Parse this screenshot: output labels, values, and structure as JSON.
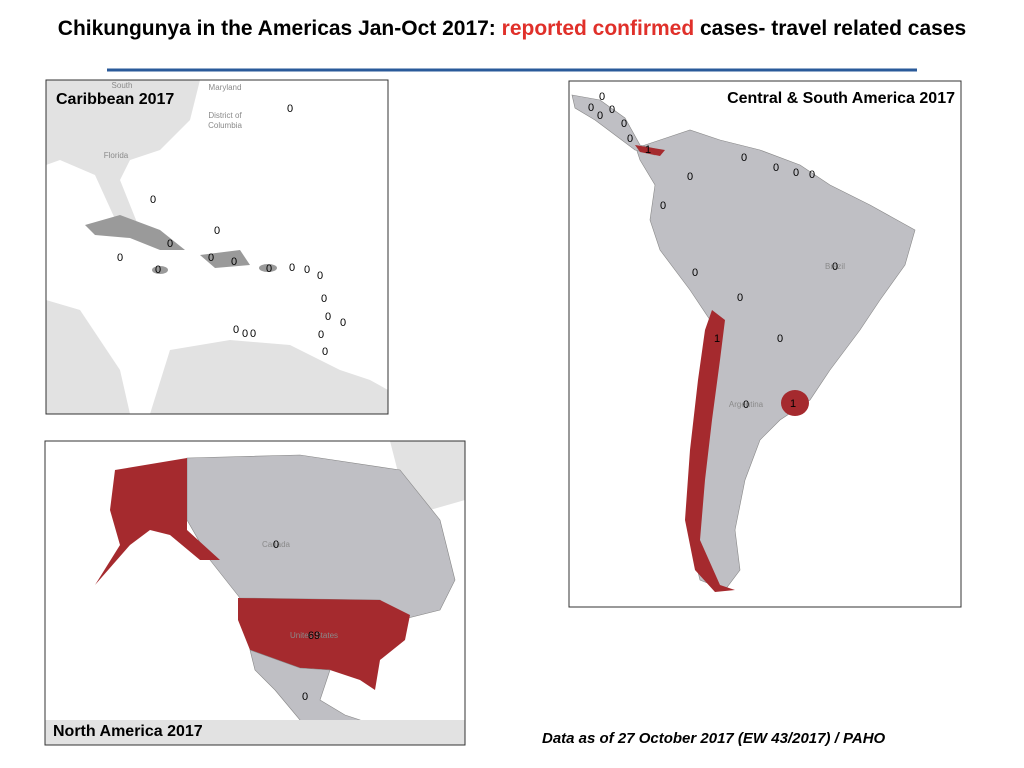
{
  "title": {
    "text_before": "Chikungunya in the Americas Jan-Oct 2017: ",
    "highlight": "reported confirmed",
    "text_after": " cases- travel related cases"
  },
  "maps": [
    {
      "label": "Caribbean 2017",
      "place_labels": [
        "South",
        "Maryland",
        "District of",
        "Columbia",
        "Florida"
      ],
      "case_counts": [
        0,
        0,
        0,
        0,
        0,
        0,
        0,
        0,
        0,
        0,
        0,
        0,
        0,
        0,
        0,
        0,
        0,
        0,
        0,
        0
      ]
    },
    {
      "label": "Central & South America  2017",
      "place_labels": [
        "Brazil",
        "Argentina"
      ],
      "case_counts": [
        0,
        0,
        0,
        0,
        0,
        0,
        1,
        0,
        0,
        0,
        0,
        0,
        0,
        0,
        0,
        0,
        1,
        0,
        0,
        1
      ]
    },
    {
      "label": "North America  2017",
      "place_labels": [
        "Canada",
        "United States"
      ],
      "case_counts": [
        0,
        69,
        0
      ]
    }
  ],
  "footer": "Data as of 27 October 2017 (EW 43/2017) / PAHO"
}
